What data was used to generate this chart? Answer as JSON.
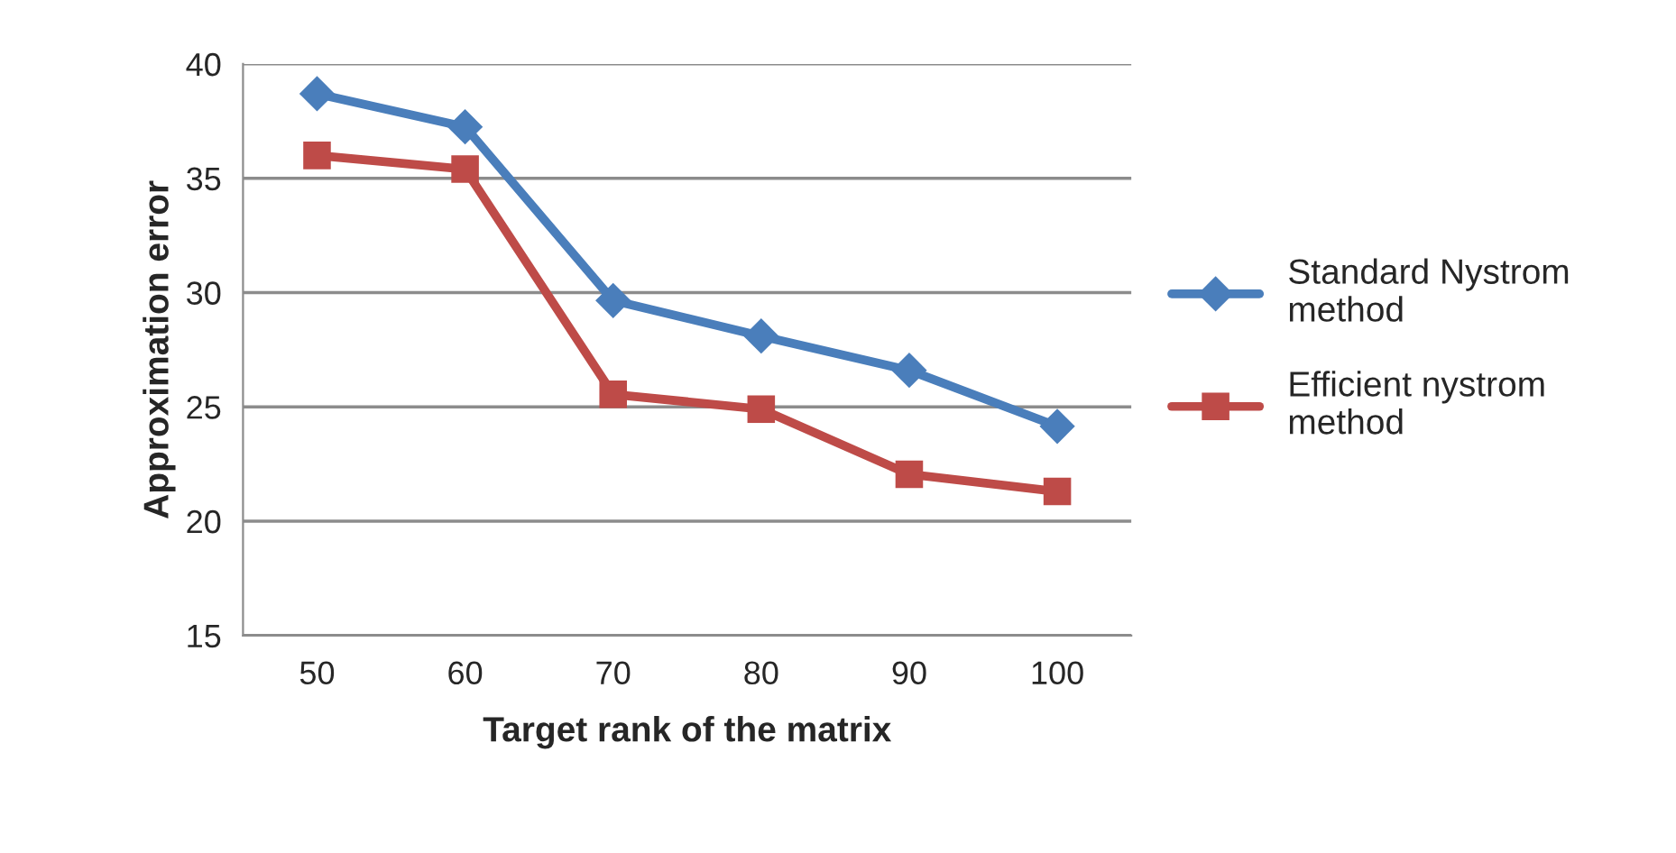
{
  "chart_data": {
    "type": "line",
    "xlabel": "Target rank of the matrix",
    "ylabel": "Approximation error",
    "categories": [
      "50",
      "60",
      "70",
      "80",
      "90",
      "100"
    ],
    "series": [
      {
        "name": "Standard Nystrom method",
        "color": "#4a7ebb",
        "marker": "diamond",
        "values": [
          38.7,
          37.25,
          29.65,
          28.1,
          26.6,
          24.15
        ]
      },
      {
        "name": "Efficient nystrom method",
        "color": "#be4b48",
        "marker": "square",
        "values": [
          36.0,
          35.4,
          25.55,
          24.9,
          22.05,
          21.3
        ]
      }
    ],
    "ylim": [
      15,
      40
    ],
    "yticks": [
      15,
      20,
      25,
      30,
      35,
      40
    ],
    "grid": "y",
    "legend": "right",
    "line_style": "solid"
  }
}
